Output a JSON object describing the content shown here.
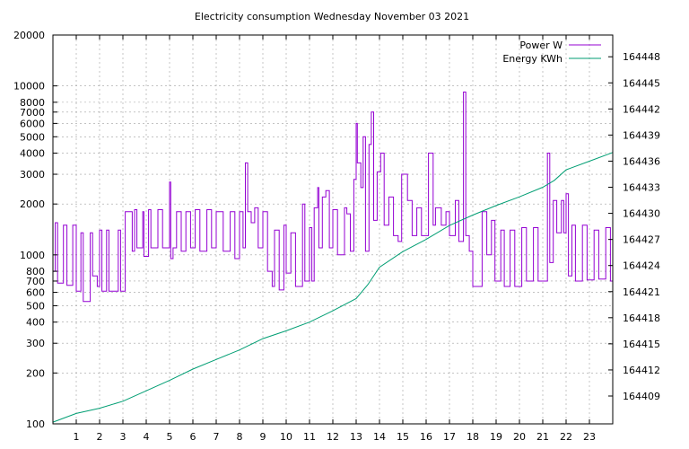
{
  "chart_data": {
    "type": "line",
    "title": "Electricity consumption Wednesday November 03 2021",
    "grid": true,
    "legend_placement": "top-right",
    "x_axis": {
      "min": 0,
      "max": 24,
      "ticks": [
        1,
        2,
        3,
        4,
        5,
        6,
        7,
        8,
        9,
        10,
        11,
        12,
        13,
        14,
        15,
        16,
        17,
        18,
        19,
        20,
        21,
        22,
        23
      ],
      "tick_labels": [
        "1",
        "2",
        "3",
        "4",
        "5",
        "6",
        "7",
        "8",
        "9",
        "10",
        "11",
        "12",
        "13",
        "14",
        "15",
        "16",
        "17",
        "18",
        "19",
        "20",
        "21",
        "22",
        "23"
      ]
    },
    "y_axis": {
      "scale": "log",
      "min": 100,
      "max": 20000,
      "ticks": [
        100,
        200,
        300,
        400,
        500,
        600,
        700,
        800,
        1000,
        2000,
        3000,
        4000,
        5000,
        6000,
        7000,
        8000,
        10000,
        20000
      ],
      "tick_labels": [
        "100",
        "200",
        "300",
        "400",
        "500",
        "600",
        "700",
        "800",
        "1000",
        "2000",
        "3000",
        "4000",
        "5000",
        "6000",
        "7000",
        "8000",
        "10000",
        "20000"
      ]
    },
    "y2_axis": {
      "scale": "linear",
      "min": 164405.8,
      "max": 164450.5,
      "ticks": [
        164409,
        164412,
        164415,
        164418,
        164421,
        164424,
        164427,
        164430,
        164433,
        164436,
        164439,
        164442,
        164445,
        164448
      ],
      "tick_labels": [
        "164409",
        "164412",
        "164415",
        "164418",
        "164421",
        "164424",
        "164427",
        "164430",
        "164433",
        "164436",
        "164439",
        "164442",
        "164445",
        "164448"
      ]
    },
    "series": [
      {
        "name": "Power W",
        "color": "#9400d3",
        "axis": "y",
        "points": [
          [
            0.0,
            800
          ],
          [
            0.1,
            1550
          ],
          [
            0.2,
            680
          ],
          [
            0.45,
            1500
          ],
          [
            0.6,
            660
          ],
          [
            0.85,
            1500
          ],
          [
            1.0,
            610
          ],
          [
            1.2,
            1350
          ],
          [
            1.3,
            530
          ],
          [
            1.6,
            1350
          ],
          [
            1.7,
            750
          ],
          [
            1.9,
            650
          ],
          [
            2.0,
            1400
          ],
          [
            2.1,
            610
          ],
          [
            2.3,
            1400
          ],
          [
            2.4,
            610
          ],
          [
            2.8,
            1400
          ],
          [
            2.9,
            610
          ],
          [
            3.1,
            1800
          ],
          [
            3.3,
            1800
          ],
          [
            3.4,
            1050
          ],
          [
            3.5,
            1850
          ],
          [
            3.6,
            1100
          ],
          [
            3.85,
            1800
          ],
          [
            3.9,
            980
          ],
          [
            4.1,
            1850
          ],
          [
            4.2,
            1100
          ],
          [
            4.5,
            1850
          ],
          [
            4.7,
            1100
          ],
          [
            5.0,
            2700
          ],
          [
            5.05,
            950
          ],
          [
            5.15,
            1100
          ],
          [
            5.3,
            1800
          ],
          [
            5.5,
            1050
          ],
          [
            5.7,
            1800
          ],
          [
            5.9,
            1100
          ],
          [
            6.1,
            1850
          ],
          [
            6.3,
            1050
          ],
          [
            6.6,
            1850
          ],
          [
            6.8,
            1100
          ],
          [
            7.0,
            1800
          ],
          [
            7.3,
            1050
          ],
          [
            7.6,
            1800
          ],
          [
            7.8,
            950
          ],
          [
            8.0,
            1800
          ],
          [
            8.15,
            1100
          ],
          [
            8.25,
            3500
          ],
          [
            8.35,
            1800
          ],
          [
            8.5,
            1550
          ],
          [
            8.65,
            1900
          ],
          [
            8.8,
            1100
          ],
          [
            9.0,
            1800
          ],
          [
            9.2,
            800
          ],
          [
            9.4,
            650
          ],
          [
            9.5,
            1400
          ],
          [
            9.7,
            620
          ],
          [
            9.9,
            1500
          ],
          [
            10.0,
            780
          ],
          [
            10.2,
            1350
          ],
          [
            10.4,
            650
          ],
          [
            10.7,
            2000
          ],
          [
            10.8,
            700
          ],
          [
            11.0,
            1450
          ],
          [
            11.1,
            700
          ],
          [
            11.2,
            1900
          ],
          [
            11.35,
            2500
          ],
          [
            11.4,
            1100
          ],
          [
            11.55,
            2200
          ],
          [
            11.7,
            2400
          ],
          [
            11.85,
            1100
          ],
          [
            12.0,
            1850
          ],
          [
            12.2,
            1000
          ],
          [
            12.5,
            1900
          ],
          [
            12.6,
            1750
          ],
          [
            12.75,
            1050
          ],
          [
            12.9,
            2800
          ],
          [
            13.0,
            6000
          ],
          [
            13.05,
            3500
          ],
          [
            13.2,
            2500
          ],
          [
            13.3,
            5000
          ],
          [
            13.4,
            1050
          ],
          [
            13.55,
            4500
          ],
          [
            13.65,
            7000
          ],
          [
            13.75,
            1600
          ],
          [
            13.9,
            3100
          ],
          [
            14.05,
            4000
          ],
          [
            14.2,
            1500
          ],
          [
            14.4,
            2200
          ],
          [
            14.6,
            1300
          ],
          [
            14.8,
            1200
          ],
          [
            14.95,
            3000
          ],
          [
            15.2,
            2100
          ],
          [
            15.4,
            1300
          ],
          [
            15.6,
            1900
          ],
          [
            15.8,
            1300
          ],
          [
            16.1,
            4000
          ],
          [
            16.3,
            1500
          ],
          [
            16.4,
            1900
          ],
          [
            16.65,
            1500
          ],
          [
            16.85,
            1800
          ],
          [
            17.0,
            1300
          ],
          [
            17.25,
            2100
          ],
          [
            17.4,
            1200
          ],
          [
            17.6,
            9200
          ],
          [
            17.7,
            1300
          ],
          [
            17.85,
            1050
          ],
          [
            18.0,
            650
          ],
          [
            18.2,
            650
          ],
          [
            18.4,
            1800
          ],
          [
            18.6,
            1000
          ],
          [
            18.8,
            1600
          ],
          [
            18.95,
            700
          ],
          [
            19.2,
            1400
          ],
          [
            19.35,
            650
          ],
          [
            19.6,
            1400
          ],
          [
            19.8,
            650
          ],
          [
            20.1,
            1450
          ],
          [
            20.3,
            700
          ],
          [
            20.6,
            1450
          ],
          [
            20.8,
            700
          ],
          [
            21.2,
            4000
          ],
          [
            21.3,
            900
          ],
          [
            21.45,
            2100
          ],
          [
            21.6,
            1350
          ],
          [
            21.8,
            2100
          ],
          [
            21.9,
            1350
          ],
          [
            22.0,
            2300
          ],
          [
            22.1,
            750
          ],
          [
            22.25,
            1500
          ],
          [
            22.4,
            700
          ],
          [
            22.7,
            1500
          ],
          [
            22.9,
            710
          ],
          [
            23.2,
            1400
          ],
          [
            23.4,
            720
          ],
          [
            23.7,
            1450
          ],
          [
            23.9,
            700
          ],
          [
            24.0,
            720
          ]
        ]
      },
      {
        "name": "Energy KWh",
        "color": "#009e73",
        "axis": "y2",
        "points": [
          [
            0.0,
            164406.0
          ],
          [
            1.0,
            164407.0
          ],
          [
            2.0,
            164407.6
          ],
          [
            3.0,
            164408.4
          ],
          [
            4.0,
            164409.6
          ],
          [
            5.0,
            164410.8
          ],
          [
            6.0,
            164412.1
          ],
          [
            7.0,
            164413.2
          ],
          [
            8.0,
            164414.3
          ],
          [
            9.0,
            164415.6
          ],
          [
            10.0,
            164416.5
          ],
          [
            11.0,
            164417.5
          ],
          [
            12.0,
            164418.8
          ],
          [
            13.0,
            164420.2
          ],
          [
            13.5,
            164421.8
          ],
          [
            14.0,
            164423.8
          ],
          [
            15.0,
            164425.6
          ],
          [
            16.0,
            164427.0
          ],
          [
            17.0,
            164428.6
          ],
          [
            18.0,
            164429.8
          ],
          [
            19.0,
            164430.9
          ],
          [
            20.0,
            164431.9
          ],
          [
            21.0,
            164433.0
          ],
          [
            21.5,
            164433.8
          ],
          [
            22.0,
            164435.0
          ],
          [
            23.0,
            164436.0
          ],
          [
            24.0,
            164437.0
          ]
        ]
      }
    ]
  }
}
